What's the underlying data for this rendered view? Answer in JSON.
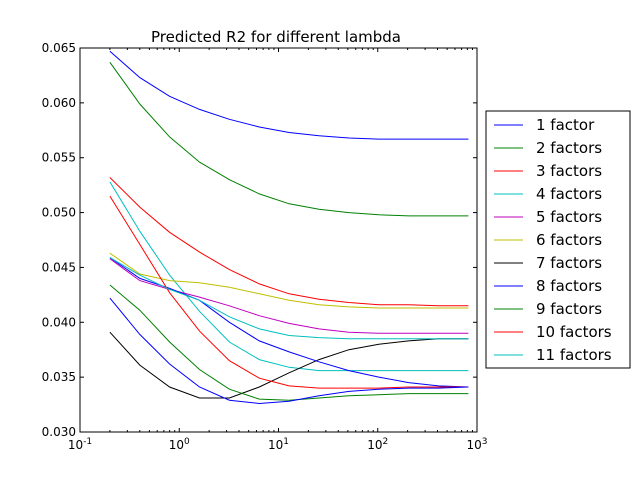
{
  "chart_data": {
    "type": "line",
    "title": "Predicted R2 for different lambda",
    "xlabel": "",
    "ylabel": "",
    "xscale": "log",
    "xlim": [
      0.1,
      1000
    ],
    "ylim": [
      0.03,
      0.065
    ],
    "grid": false,
    "legend_position": "outside-right",
    "x_tick_labels": [
      {
        "value": 0.1,
        "base": "10",
        "exp": "-1"
      },
      {
        "value": 1,
        "base": "10",
        "exp": "0"
      },
      {
        "value": 10,
        "base": "10",
        "exp": "1"
      },
      {
        "value": 100,
        "base": "10",
        "exp": "2"
      },
      {
        "value": 1000,
        "base": "10",
        "exp": "3"
      }
    ],
    "y_tick_labels": [
      "0.030",
      "0.035",
      "0.040",
      "0.045",
      "0.050",
      "0.055",
      "0.060",
      "0.065"
    ],
    "x": [
      0.2,
      0.4,
      0.8,
      1.6,
      3.2,
      6.4,
      12.8,
      25.6,
      51.2,
      102.4,
      204.8,
      409.6,
      819.2
    ],
    "series": [
      {
        "name": "1 factor",
        "color": "#0000ff",
        "values": [
          0.0647,
          0.0623,
          0.0606,
          0.0594,
          0.0585,
          0.0578,
          0.0573,
          0.057,
          0.0568,
          0.0567,
          0.0567,
          0.0567,
          0.0567
        ]
      },
      {
        "name": "2 factors",
        "color": "#008000",
        "values": [
          0.0637,
          0.0599,
          0.0569,
          0.0546,
          0.053,
          0.0517,
          0.0508,
          0.0503,
          0.05,
          0.0498,
          0.0497,
          0.0497,
          0.0497
        ]
      },
      {
        "name": "3 factors",
        "color": "#ff0000",
        "values": [
          0.0532,
          0.0505,
          0.0482,
          0.0464,
          0.0448,
          0.0435,
          0.0426,
          0.0421,
          0.0418,
          0.0416,
          0.0416,
          0.0415,
          0.0415
        ]
      },
      {
        "name": "4 factors",
        "color": "#00bfbf",
        "values": [
          0.0528,
          0.0483,
          0.0443,
          0.041,
          0.0382,
          0.0366,
          0.0359,
          0.0356,
          0.0356,
          0.0356,
          0.0356,
          0.0356,
          0.0356
        ]
      },
      {
        "name": "5 factors",
        "color": "#bf00bf",
        "values": [
          0.0458,
          0.0438,
          0.043,
          0.0423,
          0.0415,
          0.0406,
          0.0399,
          0.0394,
          0.0391,
          0.039,
          0.039,
          0.039,
          0.039
        ]
      },
      {
        "name": "6 factors",
        "color": "#bfbf00",
        "values": [
          0.0463,
          0.0444,
          0.0438,
          0.0436,
          0.0432,
          0.0426,
          0.042,
          0.0416,
          0.0414,
          0.0413,
          0.0413,
          0.0413,
          0.0413
        ]
      },
      {
        "name": "7 factors",
        "color": "#000000",
        "values": [
          0.0391,
          0.0361,
          0.0341,
          0.0331,
          0.0331,
          0.0341,
          0.0354,
          0.0366,
          0.0375,
          0.038,
          0.0383,
          0.0385,
          0.0385
        ]
      },
      {
        "name": "8 factors",
        "color": "#0000ff",
        "values": [
          0.0459,
          0.044,
          0.0431,
          0.042,
          0.04,
          0.0383,
          0.0373,
          0.0364,
          0.0356,
          0.035,
          0.0345,
          0.0342,
          0.0341
        ]
      },
      {
        "name": "9 factors",
        "color": "#008000",
        "values": [
          0.0434,
          0.0411,
          0.0382,
          0.0357,
          0.0339,
          0.033,
          0.0329,
          0.0331,
          0.0333,
          0.0334,
          0.0335,
          0.0335,
          0.0335
        ]
      },
      {
        "name": "10 factors",
        "color": "#ff0000",
        "values": [
          0.0515,
          0.0471,
          0.0427,
          0.0392,
          0.0365,
          0.0349,
          0.0342,
          0.034,
          0.034,
          0.034,
          0.0341,
          0.0341,
          0.0341
        ]
      },
      {
        "name": "11 factors",
        "color": "#00bfbf",
        "values": [
          0.0459,
          0.0443,
          0.043,
          0.042,
          0.0405,
          0.0394,
          0.0388,
          0.0386,
          0.0385,
          0.0385,
          0.0385,
          0.0385,
          0.0385
        ]
      }
    ],
    "extra_series": [
      {
        "color": "#0000ff",
        "values": [
          0.0422,
          0.0389,
          0.0362,
          0.0341,
          0.0329,
          0.0326,
          0.0328,
          0.0333,
          0.0337,
          0.0339,
          0.034,
          0.034,
          0.0341
        ]
      }
    ]
  }
}
